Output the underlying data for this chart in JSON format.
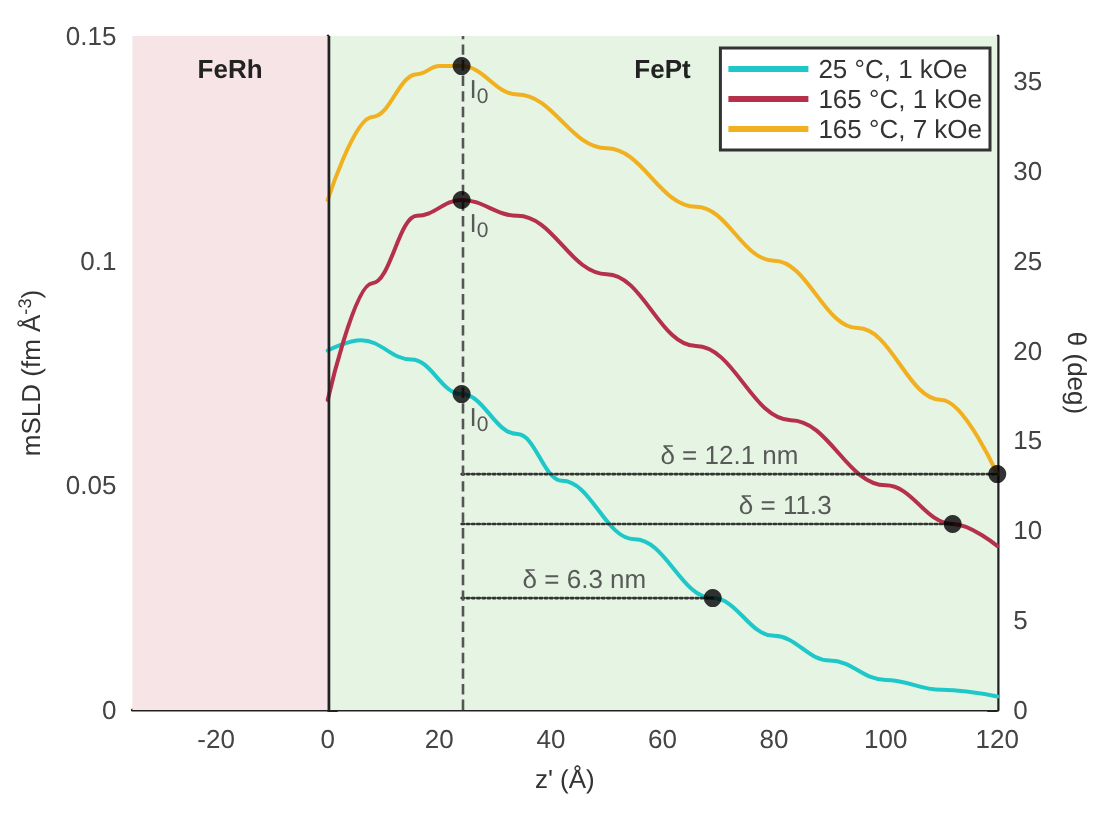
{
  "chart_data": {
    "type": "line",
    "xlabel": "z' (Å)",
    "ylabel": "mSLD (fm Å$^{-3}$)",
    "y2label": "θ (deg)",
    "xlim": [
      -35,
      120
    ],
    "xticks": [
      -20,
      0,
      20,
      40,
      60,
      80,
      100,
      120
    ],
    "ylim": [
      0,
      0.15
    ],
    "yticks": [
      0,
      0.05,
      0.1,
      0.15
    ],
    "y2lim": [
      0,
      37.5
    ],
    "y2ticks": [
      0,
      5,
      10,
      15,
      20,
      25,
      30,
      35
    ],
    "grid": false,
    "legend": "top right",
    "marker": "none",
    "line_style": "solid",
    "series": [
      {
        "name": "25 °C, 1 kOe",
        "color": "#1fc8c8",
        "x": [
          0,
          6,
          15,
          24,
          34,
          42,
          55,
          69,
          80,
          90,
          100,
          110,
          120
        ],
        "values": [
          0.08,
          0.0823,
          0.078,
          0.0703,
          0.0614,
          0.051,
          0.038,
          0.0249,
          0.0165,
          0.011,
          0.0067,
          0.0045,
          0.003
        ]
      },
      {
        "name": "165 °C, 1 kOe",
        "color": "#b5304a",
        "x": [
          0,
          8,
          16,
          24,
          34,
          50,
          66,
          83,
          100,
          112,
          120
        ],
        "values": [
          0.069,
          0.095,
          0.11,
          0.1135,
          0.11,
          0.097,
          0.081,
          0.0645,
          0.05,
          0.0414,
          0.0365
        ]
      },
      {
        "name": "165 °C, 7 kOe",
        "color": "#f0b020",
        "x": [
          0,
          8,
          16,
          20,
          24,
          34,
          50,
          66,
          80,
          95,
          110,
          120
        ],
        "values": [
          0.1135,
          0.132,
          0.1415,
          0.1433,
          0.1433,
          0.137,
          0.125,
          0.112,
          0.1,
          0.085,
          0.069,
          0.0525
        ]
      },
      {
        "type": "scatter",
        "marker": "circle",
        "color": "#000000",
        "x": [
          24,
          24,
          24,
          69,
          112,
          120
        ],
        "values": [
          0.1433,
          0.1135,
          0.0703,
          0.0249,
          0.0414,
          0.0525
        ]
      },
      {
        "color": "#333333",
        "line_style": "dotted",
        "x": [
          24,
          120
        ],
        "values": [
          0.0525,
          0.0525
        ]
      },
      {
        "color": "#333333",
        "line_style": "dotted",
        "x": [
          24,
          112
        ],
        "values": [
          0.0414,
          0.0414
        ]
      },
      {
        "color": "#333333",
        "line_style": "dotted",
        "x": [
          24,
          69
        ],
        "values": [
          0.0249,
          0.0249
        ]
      }
    ],
    "ref_lines": [
      {
        "axis": "x",
        "value": 0,
        "color": "#222222",
        "line_style": "solid"
      },
      {
        "axis": "x",
        "value": 24,
        "color": "#555555",
        "line_style": "dashed"
      }
    ],
    "bands": [
      {
        "axis": "x",
        "from": -35,
        "to": 0,
        "label": "FeRh",
        "color": "#f7e4e6"
      },
      {
        "axis": "x",
        "from": 0,
        "to": 120,
        "label": "FePt",
        "color": "#e6f4e4"
      }
    ],
    "annotations": [
      {
        "text": "I$_{0}$",
        "x": 24,
        "y": 0.1433
      },
      {
        "text": "I$_{0}$",
        "x": 24,
        "y": 0.1135
      },
      {
        "text": "I$_{0}$",
        "x": 24,
        "y": 0.0703
      },
      {
        "text": "δ = 12.1 nm",
        "x": 72,
        "y": 0.0525
      },
      {
        "text": "δ = 11.3",
        "x": 82,
        "y": 0.0414
      },
      {
        "text": "δ = 6.3 nm",
        "x": 46,
        "y": 0.0249
      }
    ]
  }
}
